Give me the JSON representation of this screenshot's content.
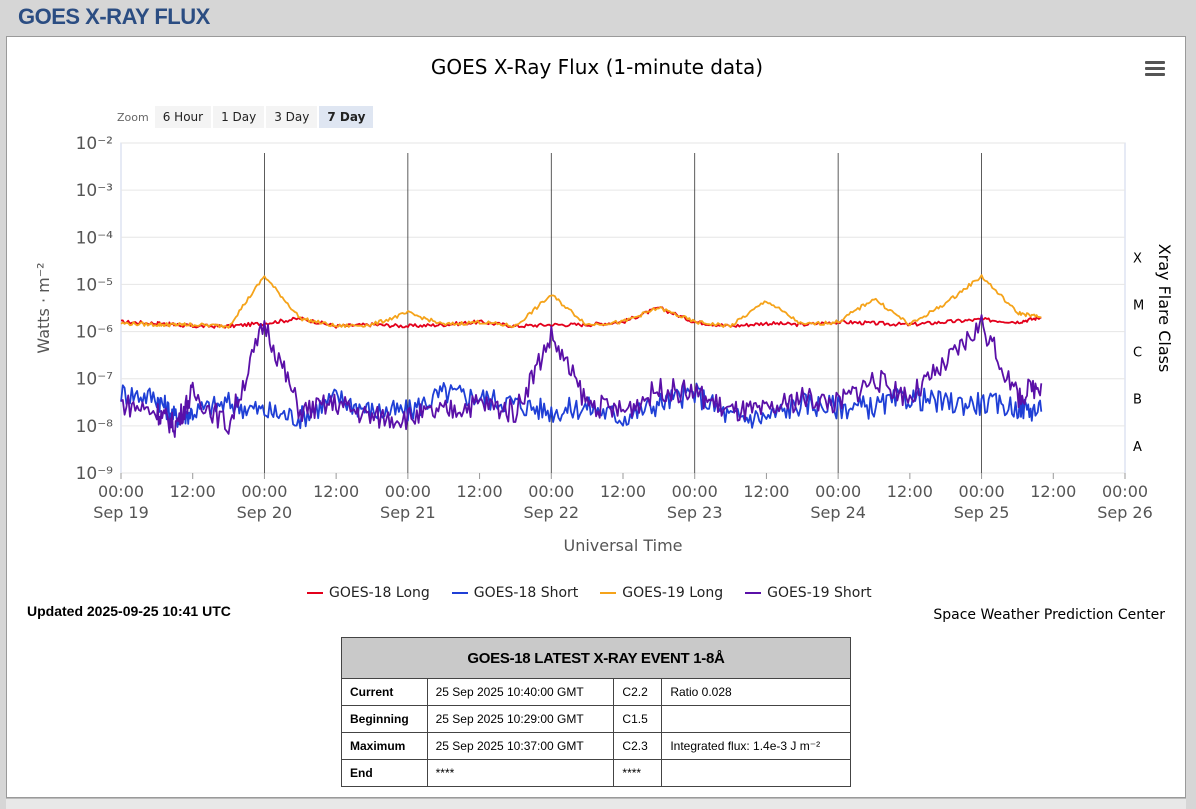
{
  "page": {
    "header": "GOES X-RAY FLUX"
  },
  "chart": {
    "title": "GOES X-Ray Flux (1-minute data)",
    "menu_icon": "hamburger-menu-icon",
    "zoom": {
      "label": "Zoom",
      "buttons": [
        "6 Hour",
        "1 Day",
        "3 Day",
        "7 Day"
      ],
      "active": "7 Day"
    },
    "updated": "Updated 2025-09-25 10:41 UTC",
    "credit": "Space Weather Prediction Center",
    "colors": {
      "goes18_long": "#e3001b",
      "goes18_short": "#1f3fd6",
      "goes19_long": "#f5a31a",
      "goes19_short": "#5a10a8"
    }
  },
  "chart_data": {
    "type": "line",
    "title": "GOES X-Ray Flux (1-minute data)",
    "xlabel": "Universal Time",
    "ylabel": "Watts · m⁻²",
    "y2label": "Xray Flare Class",
    "yscale": "log",
    "ylim": [
      1e-09,
      0.01
    ],
    "xlim": [
      "2025-09-19 00:00",
      "2025-09-26 00:00"
    ],
    "y_ticks": [
      "10⁻⁹",
      "10⁻⁸",
      "10⁻⁷",
      "10⁻⁶",
      "10⁻⁵",
      "10⁻⁴",
      "10⁻³",
      "10⁻²"
    ],
    "x_ticks": [
      [
        "00:00",
        "Sep 19"
      ],
      [
        "12:00",
        ""
      ],
      [
        "00:00",
        "Sep 20"
      ],
      [
        "12:00",
        ""
      ],
      [
        "00:00",
        "Sep 21"
      ],
      [
        "12:00",
        ""
      ],
      [
        "00:00",
        "Sep 22"
      ],
      [
        "12:00",
        ""
      ],
      [
        "00:00",
        "Sep 23"
      ],
      [
        "12:00",
        ""
      ],
      [
        "00:00",
        "Sep 24"
      ],
      [
        "12:00",
        ""
      ],
      [
        "00:00",
        "Sep 25"
      ],
      [
        "12:00",
        ""
      ],
      [
        "00:00",
        "Sep 26"
      ]
    ],
    "flare_classes": [
      {
        "label": "X",
        "y": 0.0001
      },
      {
        "label": "M",
        "y": 1e-05
      },
      {
        "label": "C",
        "y": 1e-06
      },
      {
        "label": "B",
        "y": 1e-07
      },
      {
        "label": "A",
        "y": 1e-08
      }
    ],
    "x_hours_from_start": [
      0,
      6,
      9,
      12,
      18,
      24,
      30,
      36,
      42,
      48,
      54,
      60,
      66,
      72,
      78,
      84,
      90,
      96,
      102,
      108,
      114,
      120,
      126,
      132,
      138,
      144,
      150,
      154
    ],
    "series": [
      {
        "name": "GOES-18 Long",
        "color": "#e3001b",
        "values": [
          1.6e-06,
          1.5e-06,
          1.4e-06,
          1.3e-06,
          1.3e-06,
          1.5e-06,
          1.9e-06,
          1.3e-06,
          1.4e-06,
          1.3e-06,
          1.4e-06,
          1.6e-06,
          1.3e-06,
          1.4e-06,
          1.4e-06,
          1.6e-06,
          3.2e-06,
          1.6e-06,
          1.3e-06,
          1.5e-06,
          1.4e-06,
          1.6e-06,
          1.5e-06,
          1.4e-06,
          1.6e-06,
          1.8e-06,
          1.6e-06,
          2e-06
        ]
      },
      {
        "name": "GOES-18 Short",
        "color": "#1f3fd6",
        "values": [
          5e-08,
          4e-08,
          1.5e-08,
          2e-08,
          3e-08,
          2e-08,
          1.5e-08,
          4e-08,
          2e-08,
          2e-08,
          5e-08,
          4e-08,
          3e-08,
          2e-08,
          2.5e-08,
          1.5e-08,
          3e-08,
          5e-08,
          1.5e-08,
          1.5e-08,
          3e-08,
          2.5e-08,
          2.5e-08,
          4e-08,
          3e-08,
          3e-08,
          2.5e-08,
          2e-08
        ]
      },
      {
        "name": "GOES-19 Long",
        "color": "#f5a31a",
        "values": [
          1.5e-06,
          1.4e-06,
          1.4e-06,
          1.4e-06,
          1.3e-06,
          1.5e-05,
          1.9e-06,
          1.3e-06,
          1.4e-06,
          2.5e-06,
          1.4e-06,
          1.6e-06,
          1.3e-06,
          6e-06,
          1.4e-06,
          1.6e-06,
          3.2e-06,
          1.6e-06,
          1.3e-06,
          4.5e-06,
          1.4e-06,
          1.6e-06,
          5e-06,
          1.4e-06,
          4e-06,
          1.5e-05,
          2.5e-06,
          2e-06
        ]
      },
      {
        "name": "GOES-19 Short",
        "color": "#5a10a8",
        "values": [
          3e-08,
          2e-08,
          1e-08,
          5e-08,
          1e-08,
          1.5e-06,
          2e-08,
          3e-08,
          1.5e-08,
          1.5e-08,
          2e-08,
          3e-08,
          2e-08,
          8e-07,
          3e-08,
          2e-08,
          6e-08,
          5e-08,
          2e-08,
          2e-08,
          4e-08,
          3e-08,
          1e-07,
          4e-08,
          2e-07,
          1.5e-06,
          4e-08,
          8e-08
        ]
      }
    ]
  },
  "event": {
    "title": "GOES-18 LATEST X-RAY EVENT 1-8Å",
    "rows": [
      {
        "label": "Current",
        "time": "25 Sep 2025 10:40:00 GMT",
        "cls": "C2.2",
        "extra": "Ratio 0.028"
      },
      {
        "label": "Beginning",
        "time": "25 Sep 2025 10:29:00 GMT",
        "cls": "C1.5",
        "extra": ""
      },
      {
        "label": "Maximum",
        "time": "25 Sep 2025 10:37:00 GMT",
        "cls": "C2.3",
        "extra": "Integrated flux: 1.4e-3 J m⁻²"
      },
      {
        "label": "End",
        "time": "****",
        "cls": "****",
        "extra": ""
      }
    ]
  }
}
